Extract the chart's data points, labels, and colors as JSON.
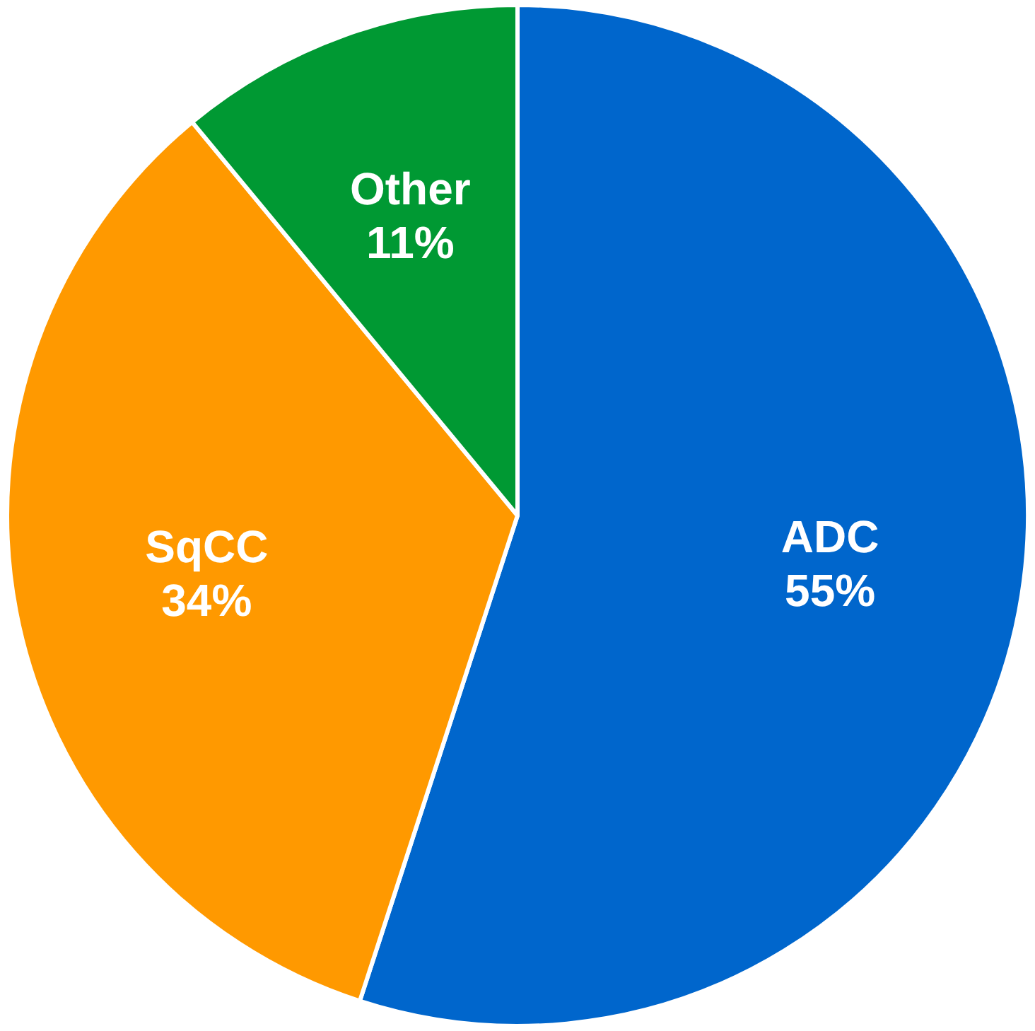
{
  "chart_data": {
    "type": "pie",
    "categories": [
      "ADC",
      "SqCC",
      "Other"
    ],
    "values": [
      55,
      34,
      11
    ],
    "colors": [
      "#0066cc",
      "#ff9900",
      "#009933"
    ],
    "value_labels": [
      "55%",
      "34%",
      "11%"
    ],
    "legend": false
  }
}
